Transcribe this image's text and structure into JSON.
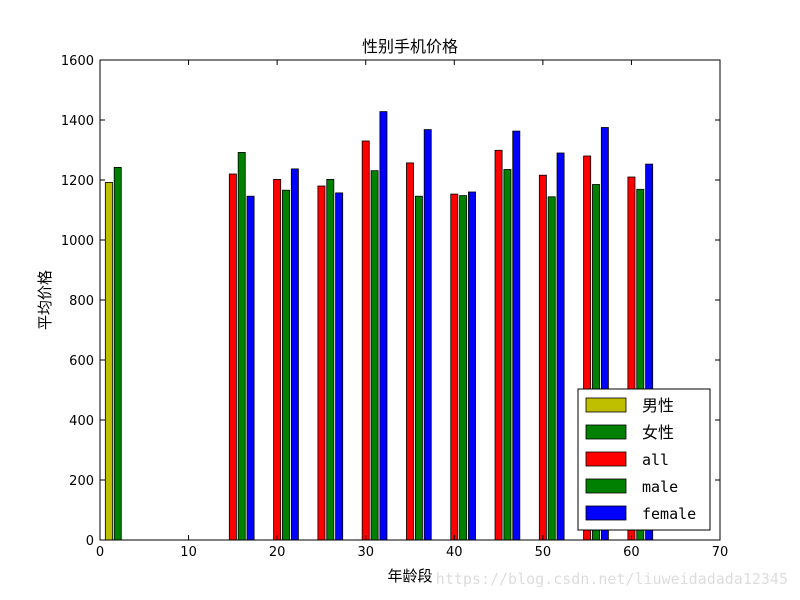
{
  "chart_data": {
    "type": "bar",
    "title": "性别手机价格",
    "xlabel": "年龄段",
    "ylabel": "平均价格",
    "xlim": [
      0,
      70
    ],
    "ylim": [
      0,
      1600
    ],
    "xticks": [
      0,
      10,
      20,
      30,
      40,
      50,
      60,
      70
    ],
    "yticks": [
      0,
      200,
      400,
      600,
      800,
      1000,
      1200,
      1400,
      1600
    ],
    "grid": false,
    "legend_position": "bottom-right",
    "series": [
      {
        "name": "男性",
        "color": "#bfbf00",
        "bars": [
          {
            "x": 1,
            "value": 1192
          }
        ]
      },
      {
        "name": "女性",
        "color": "#008000",
        "bars": [
          {
            "x": 2,
            "value": 1242
          }
        ]
      },
      {
        "name": "all",
        "color": "#ff0000",
        "bars": [
          {
            "x": 15,
            "value": 1220
          },
          {
            "x": 20,
            "value": 1202
          },
          {
            "x": 25,
            "value": 1180
          },
          {
            "x": 30,
            "value": 1330
          },
          {
            "x": 35,
            "value": 1257
          },
          {
            "x": 40,
            "value": 1153
          },
          {
            "x": 45,
            "value": 1299
          },
          {
            "x": 50,
            "value": 1216
          },
          {
            "x": 55,
            "value": 1280
          },
          {
            "x": 60,
            "value": 1210
          }
        ]
      },
      {
        "name": "male",
        "color": "#008000",
        "bars": [
          {
            "x": 16,
            "value": 1292
          },
          {
            "x": 21,
            "value": 1166
          },
          {
            "x": 26,
            "value": 1202
          },
          {
            "x": 31,
            "value": 1231
          },
          {
            "x": 36,
            "value": 1146
          },
          {
            "x": 41,
            "value": 1148
          },
          {
            "x": 46,
            "value": 1235
          },
          {
            "x": 51,
            "value": 1144
          },
          {
            "x": 56,
            "value": 1185
          },
          {
            "x": 61,
            "value": 1169
          }
        ]
      },
      {
        "name": "female",
        "color": "#0000ff",
        "bars": [
          {
            "x": 17,
            "value": 1146
          },
          {
            "x": 22,
            "value": 1237
          },
          {
            "x": 27,
            "value": 1157
          },
          {
            "x": 32,
            "value": 1428
          },
          {
            "x": 37,
            "value": 1368
          },
          {
            "x": 42,
            "value": 1160
          },
          {
            "x": 47,
            "value": 1363
          },
          {
            "x": 52,
            "value": 1290
          },
          {
            "x": 57,
            "value": 1375
          },
          {
            "x": 62,
            "value": 1253
          }
        ]
      }
    ]
  },
  "watermark": "https://blog.csdn.net/liuweidadada12345"
}
